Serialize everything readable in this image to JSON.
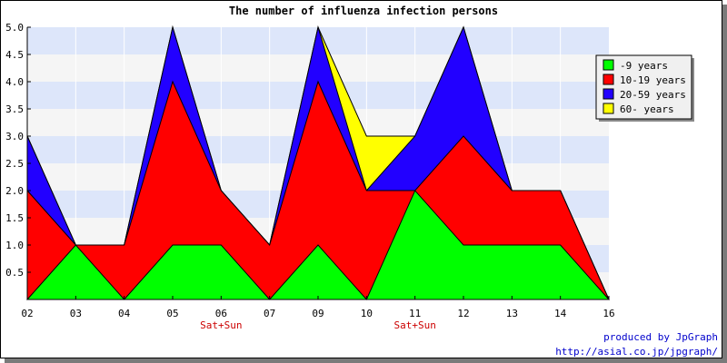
{
  "chart_data": {
    "type": "area",
    "stacked": true,
    "title": "The number of influenza infection persons",
    "categories": [
      "02",
      "03",
      "04",
      "05",
      "06",
      "07",
      "09",
      "10",
      "11",
      "12",
      "13",
      "14",
      "16"
    ],
    "weekend_labels": [
      {
        "category": "06",
        "text": "Sat+Sun"
      },
      {
        "category": "11",
        "text": "Sat+Sun"
      }
    ],
    "series": [
      {
        "name": "-9 years",
        "color": "#00ff00",
        "values": [
          0,
          1,
          0,
          1,
          1,
          0,
          1,
          0,
          2,
          1,
          1,
          1,
          0
        ]
      },
      {
        "name": "10-19 years",
        "color": "#ff0000",
        "values": [
          2,
          0,
          1,
          3,
          1,
          1,
          3,
          2,
          0,
          2,
          1,
          1,
          0
        ]
      },
      {
        "name": "20-59 years",
        "color": "#2200ff",
        "values": [
          1,
          0,
          0,
          1,
          0,
          0,
          1,
          0,
          1,
          2,
          0,
          0,
          0
        ]
      },
      {
        "name": "60- years",
        "color": "#ffff00",
        "values": [
          0,
          0,
          0,
          0,
          0,
          0,
          0,
          1,
          0,
          0,
          0,
          0,
          0
        ]
      }
    ],
    "ylim": [
      0,
      5
    ],
    "yticks": [
      "0.5",
      "1.0",
      "1.5",
      "2.0",
      "2.5",
      "3.0",
      "3.5",
      "4.0",
      "4.5",
      "5.0"
    ],
    "grid": true,
    "band_colors": [
      "#f5f5f5",
      "#dde6fa"
    ],
    "legend_position": "right",
    "xlabel": "",
    "ylabel": ""
  },
  "credits": {
    "line1": "produced by JpGraph",
    "line2": "http://asial.co.jp/jpgraph/",
    "color": "#0000cc"
  }
}
